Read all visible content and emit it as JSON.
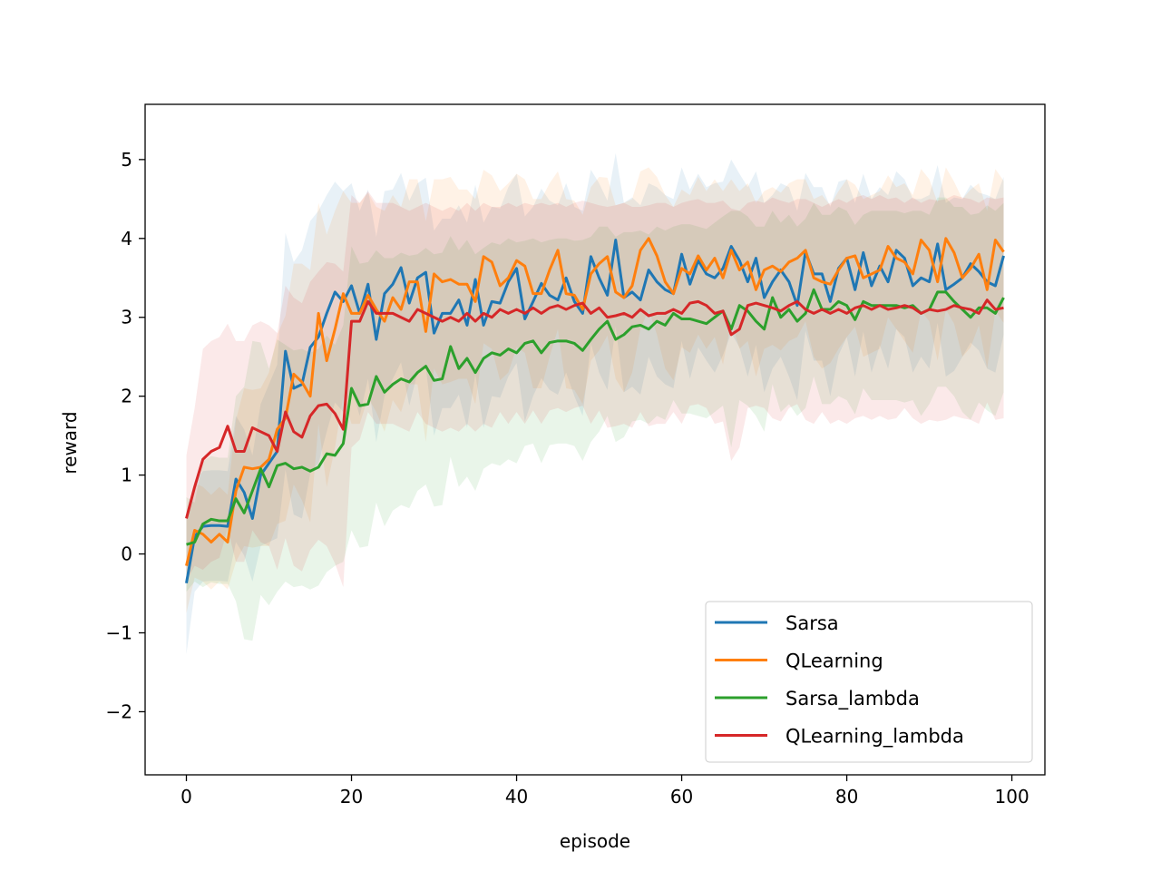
{
  "chart_data": {
    "type": "line",
    "title": "",
    "xlabel": "episode",
    "ylabel": "reward",
    "xlim": [
      -5,
      104
    ],
    "ylim": [
      -2.8,
      5.7
    ],
    "xticks": [
      0,
      20,
      40,
      60,
      80,
      100
    ],
    "yticks": [
      -2,
      -1,
      0,
      1,
      2,
      3,
      4,
      5
    ],
    "legend_position": "lower-right",
    "series": [
      {
        "name": "Sarsa",
        "color": "#1f77b4",
        "values": [
          -0.37,
          0.22,
          0.35,
          0.36,
          0.36,
          0.35,
          0.95,
          0.78,
          0.45,
          1.0,
          1.15,
          1.3,
          2.57,
          2.1,
          2.15,
          2.62,
          2.75,
          3.05,
          3.32,
          3.2,
          3.4,
          3.05,
          3.42,
          2.72,
          3.3,
          3.42,
          3.63,
          3.18,
          3.5,
          3.57,
          2.8,
          3.05,
          3.05,
          3.22,
          2.9,
          3.48,
          2.9,
          3.2,
          3.18,
          3.45,
          3.62,
          2.98,
          3.2,
          3.43,
          3.28,
          3.22,
          3.5,
          3.2,
          3.05,
          3.77,
          3.5,
          3.28,
          3.98,
          3.25,
          3.32,
          3.22,
          3.6,
          3.45,
          3.35,
          3.3,
          3.8,
          3.42,
          3.72,
          3.55,
          3.5,
          3.62,
          3.9,
          3.72,
          3.45,
          3.75,
          3.25,
          3.45,
          3.6,
          3.45,
          3.15,
          3.83,
          3.55,
          3.55,
          3.2,
          3.62,
          3.75,
          3.35,
          3.82,
          3.4,
          3.65,
          3.45,
          3.85,
          3.75,
          3.4,
          3.5,
          3.45,
          3.93,
          3.35,
          3.42,
          3.5,
          3.68,
          3.58,
          3.45,
          3.4,
          3.78
        ]
      },
      {
        "name": "QLearning",
        "color": "#ff7f0e",
        "values": [
          -0.15,
          0.3,
          0.25,
          0.15,
          0.25,
          0.15,
          0.8,
          1.1,
          1.08,
          1.1,
          1.2,
          1.58,
          1.72,
          2.28,
          2.18,
          2.0,
          3.05,
          2.45,
          2.85,
          3.3,
          3.05,
          3.05,
          3.28,
          3.1,
          2.95,
          3.25,
          3.1,
          3.45,
          3.45,
          2.82,
          3.55,
          3.45,
          3.48,
          3.42,
          3.42,
          3.2,
          3.77,
          3.7,
          3.4,
          3.5,
          3.72,
          3.65,
          3.3,
          3.3,
          3.6,
          3.85,
          3.3,
          3.28,
          3.1,
          3.55,
          3.68,
          3.77,
          3.32,
          3.25,
          3.4,
          3.85,
          4.0,
          3.78,
          3.45,
          3.3,
          3.62,
          3.55,
          3.78,
          3.6,
          3.75,
          3.5,
          3.85,
          3.6,
          3.7,
          3.35,
          3.6,
          3.65,
          3.58,
          3.7,
          3.75,
          3.85,
          3.5,
          3.45,
          3.42,
          3.6,
          3.75,
          3.78,
          3.5,
          3.55,
          3.6,
          3.9,
          3.75,
          3.7,
          3.55,
          3.98,
          3.85,
          3.45,
          4.0,
          3.82,
          3.5,
          3.62,
          3.8,
          3.35,
          3.98,
          3.83
        ]
      },
      {
        "name": "Sarsa_lambda",
        "color": "#2ca02c",
        "values": [
          0.12,
          0.15,
          0.38,
          0.44,
          0.42,
          0.42,
          0.7,
          0.52,
          0.8,
          1.08,
          0.85,
          1.12,
          1.15,
          1.08,
          1.1,
          1.05,
          1.1,
          1.27,
          1.25,
          1.4,
          2.1,
          1.88,
          1.9,
          2.25,
          2.05,
          2.15,
          2.22,
          2.18,
          2.3,
          2.38,
          2.2,
          2.22,
          2.63,
          2.35,
          2.48,
          2.3,
          2.48,
          2.55,
          2.52,
          2.6,
          2.55,
          2.67,
          2.7,
          2.55,
          2.68,
          2.7,
          2.7,
          2.67,
          2.58,
          2.72,
          2.85,
          2.95,
          2.72,
          2.78,
          2.88,
          2.9,
          2.85,
          2.95,
          2.9,
          3.05,
          2.98,
          2.98,
          2.95,
          2.92,
          3.0,
          3.08,
          2.85,
          3.15,
          3.08,
          2.95,
          2.85,
          3.25,
          3.0,
          3.1,
          2.95,
          3.05,
          3.35,
          3.1,
          3.1,
          3.2,
          3.15,
          2.97,
          3.2,
          3.15,
          3.15,
          3.15,
          3.15,
          3.12,
          3.15,
          3.05,
          3.1,
          3.32,
          3.32,
          3.2,
          3.1,
          3.0,
          3.12,
          3.12,
          3.05,
          3.25
        ]
      },
      {
        "name": "QLearning_lambda",
        "color": "#d62728",
        "values": [
          0.45,
          0.85,
          1.2,
          1.3,
          1.35,
          1.62,
          1.3,
          1.3,
          1.6,
          1.55,
          1.5,
          1.3,
          1.8,
          1.55,
          1.48,
          1.75,
          1.88,
          1.9,
          1.78,
          1.58,
          2.95,
          2.95,
          3.2,
          3.05,
          3.05,
          3.05,
          3.0,
          2.95,
          3.1,
          3.05,
          3.0,
          2.95,
          3.0,
          2.95,
          3.05,
          2.95,
          3.05,
          3.0,
          3.1,
          3.05,
          3.1,
          3.05,
          3.12,
          3.05,
          3.12,
          3.15,
          3.1,
          3.15,
          3.18,
          3.05,
          3.12,
          3.0,
          3.02,
          3.05,
          3.0,
          3.1,
          3.02,
          3.05,
          3.05,
          3.1,
          3.05,
          3.18,
          3.2,
          3.15,
          3.05,
          3.08,
          2.78,
          2.85,
          3.15,
          3.18,
          3.15,
          3.12,
          3.08,
          3.15,
          3.2,
          3.1,
          3.05,
          3.1,
          3.05,
          3.1,
          3.05,
          3.12,
          3.15,
          3.1,
          3.15,
          3.1,
          3.12,
          3.15,
          3.12,
          3.05,
          3.1,
          3.08,
          3.1,
          3.15,
          3.12,
          3.1,
          3.05,
          3.22,
          3.1,
          3.12
        ]
      }
    ],
    "bands": [
      {
        "series": "Sarsa",
        "half_width": [
          0.9,
          0.7,
          0.7,
          0.7,
          0.7,
          0.7,
          0.8,
          0.8,
          0.8,
          0.9,
          1.0,
          1.1,
          1.5,
          1.6,
          1.7,
          1.6,
          1.6,
          1.5,
          1.4,
          1.4,
          1.3,
          1.3,
          1.2,
          1.3,
          1.3,
          1.2,
          1.2,
          1.3,
          1.2,
          1.2,
          1.3,
          1.2,
          1.2,
          1.2,
          1.3,
          1.2,
          1.3,
          1.2,
          1.2,
          1.2,
          1.2,
          1.3,
          1.2,
          1.2,
          1.2,
          1.2,
          1.2,
          1.2,
          1.3,
          1.1,
          1.2,
          1.2,
          1.1,
          1.2,
          1.2,
          1.2,
          1.1,
          1.2,
          1.2,
          1.2,
          1.1,
          1.2,
          1.1,
          1.1,
          1.2,
          1.1,
          1.1,
          1.1,
          1.2,
          1.1,
          1.2,
          1.1,
          1.1,
          1.2,
          1.2,
          1.0,
          1.1,
          1.1,
          1.2,
          1.1,
          1.0,
          1.1,
          1.0,
          1.1,
          1.0,
          1.1,
          1.0,
          1.0,
          1.1,
          1.0,
          1.1,
          1.0,
          1.1,
          1.1,
          1.0,
          1.0,
          1.0,
          1.1,
          1.1,
          1.0
        ]
      },
      {
        "series": "QLearning",
        "half_width": [
          0.6,
          0.6,
          0.6,
          0.6,
          0.6,
          0.6,
          0.9,
          1.0,
          1.0,
          1.0,
          1.1,
          1.2,
          1.3,
          1.4,
          1.5,
          1.6,
          1.4,
          1.6,
          1.5,
          1.3,
          1.4,
          1.4,
          1.3,
          1.3,
          1.4,
          1.3,
          1.3,
          1.3,
          1.3,
          1.4,
          1.2,
          1.3,
          1.3,
          1.2,
          1.2,
          1.3,
          1.1,
          1.1,
          1.2,
          1.2,
          1.1,
          1.1,
          1.2,
          1.2,
          1.1,
          1.0,
          1.2,
          1.2,
          1.2,
          1.1,
          1.1,
          1.0,
          1.1,
          1.2,
          1.1,
          1.0,
          0.9,
          1.0,
          1.1,
          1.1,
          1.0,
          1.0,
          1.0,
          1.0,
          1.0,
          1.1,
          0.9,
          1.0,
          1.0,
          1.1,
          1.0,
          1.0,
          1.0,
          1.0,
          1.0,
          0.9,
          1.0,
          1.1,
          1.0,
          1.0,
          1.0,
          0.9,
          1.0,
          1.0,
          1.0,
          0.9,
          0.9,
          1.0,
          1.0,
          0.9,
          0.9,
          1.0,
          0.9,
          0.9,
          1.0,
          1.0,
          0.9,
          1.0,
          0.9,
          0.9
        ]
      },
      {
        "series": "Sarsa_lambda",
        "half_width": [
          0.6,
          0.5,
          0.8,
          0.8,
          0.8,
          0.8,
          1.3,
          1.6,
          1.9,
          1.6,
          1.5,
          1.6,
          1.5,
          1.5,
          1.5,
          1.5,
          1.5,
          1.5,
          1.4,
          1.5,
          1.8,
          1.8,
          1.8,
          1.6,
          1.7,
          1.6,
          1.6,
          1.6,
          1.5,
          1.5,
          1.6,
          1.6,
          1.4,
          1.5,
          1.5,
          1.5,
          1.4,
          1.4,
          1.4,
          1.4,
          1.4,
          1.3,
          1.3,
          1.4,
          1.3,
          1.3,
          1.3,
          1.3,
          1.4,
          1.3,
          1.3,
          1.2,
          1.3,
          1.3,
          1.2,
          1.2,
          1.2,
          1.2,
          1.2,
          1.1,
          1.2,
          1.2,
          1.2,
          1.2,
          1.2,
          1.2,
          1.5,
          1.2,
          1.2,
          1.2,
          1.3,
          1.1,
          1.2,
          1.2,
          1.2,
          1.2,
          1.1,
          1.2,
          1.2,
          1.2,
          1.2,
          1.2,
          1.1,
          1.2,
          1.2,
          1.2,
          1.2,
          1.2,
          1.2,
          1.3,
          1.2,
          1.2,
          1.2,
          1.2,
          1.3,
          1.3,
          1.2,
          1.3,
          1.3,
          1.2
        ]
      },
      {
        "series": "QLearning_lambda",
        "half_width": [
          0.8,
          1.0,
          1.4,
          1.4,
          1.4,
          1.3,
          1.4,
          1.4,
          1.3,
          1.4,
          1.4,
          1.5,
          1.6,
          1.7,
          1.7,
          1.7,
          1.7,
          1.8,
          1.9,
          2.0,
          1.6,
          1.5,
          1.4,
          1.4,
          1.4,
          1.4,
          1.4,
          1.4,
          1.3,
          1.4,
          1.4,
          1.4,
          1.4,
          1.4,
          1.4,
          1.4,
          1.4,
          1.4,
          1.3,
          1.4,
          1.3,
          1.4,
          1.3,
          1.4,
          1.3,
          1.3,
          1.3,
          1.3,
          1.3,
          1.4,
          1.3,
          1.4,
          1.4,
          1.4,
          1.4,
          1.3,
          1.4,
          1.4,
          1.4,
          1.3,
          1.4,
          1.3,
          1.3,
          1.3,
          1.4,
          1.4,
          1.6,
          1.5,
          1.3,
          1.3,
          1.3,
          1.4,
          1.4,
          1.3,
          1.3,
          1.4,
          1.4,
          1.3,
          1.4,
          1.4,
          1.4,
          1.4,
          1.4,
          1.4,
          1.4,
          1.4,
          1.4,
          1.3,
          1.4,
          1.4,
          1.4,
          1.4,
          1.4,
          1.4,
          1.4,
          1.4,
          1.4,
          1.3,
          1.4,
          1.4
        ]
      }
    ]
  }
}
